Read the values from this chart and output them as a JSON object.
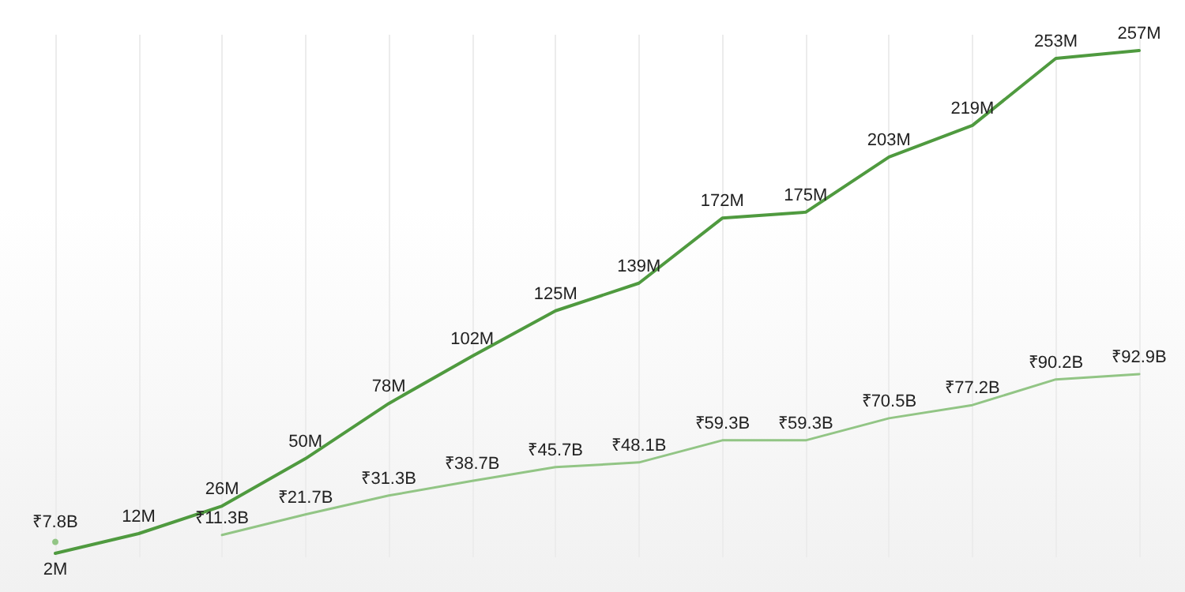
{
  "chart_data": {
    "type": "line",
    "categories": [
      null,
      null,
      null,
      null,
      null,
      null,
      null,
      null,
      null,
      null,
      null,
      null,
      null,
      null
    ],
    "series": [
      {
        "color": "#4f9a3f",
        "values": [
          2,
          12,
          26,
          50,
          78,
          102,
          125,
          139,
          172,
          175,
          203,
          219,
          253,
          257
        ],
        "value_labels": [
          "2M",
          "12M",
          "26M",
          "50M",
          "78M",
          "102M",
          "125M",
          "139M",
          "172M",
          "175M",
          "203M",
          "219M",
          "253M",
          "257M"
        ]
      },
      {
        "color": "#92c585",
        "values": [
          7.8,
          null,
          11.3,
          21.7,
          31.3,
          38.7,
          45.7,
          48.1,
          59.3,
          59.3,
          70.5,
          77.2,
          90.2,
          92.9
        ],
        "value_labels": [
          "₹7.8B",
          null,
          "₹11.3B",
          "₹21.7B",
          "₹31.3B",
          "₹38.7B",
          "₹45.7B",
          "₹48.1B",
          "₹59.3B",
          "₹59.3B",
          "₹70.5B",
          "₹77.2B",
          "₹90.2B",
          "₹92.9B"
        ]
      }
    ],
    "ylim": [
      0,
      265
    ],
    "tick_labels": false,
    "grid": "x",
    "marker": "none",
    "line_style": "solid"
  }
}
